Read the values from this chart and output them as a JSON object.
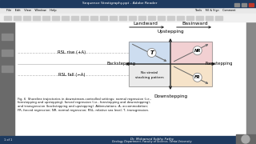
{
  "bg_color": "#b0b0b0",
  "doc_color": "#ffffff",
  "title_bar_color": "#1e3a5f",
  "menu_bar_color": "#e8e8e8",
  "toolbar_color": "#f0f0f0",
  "bottom_bar_color": "#1e3a5f",
  "left_panel_color": "#6a6a6a",
  "right_panel_color": "#888888",
  "diagram_title_landward": "Landward",
  "diagram_title_basinward": "Basinward",
  "upstepping": "Upstepping",
  "downstepping": "Downstepping",
  "backstepping": "Backstepping",
  "forestepping": "Forestepping",
  "no_strata": "No stratal\nstacking pattern",
  "rsl_rise": "RSL rise (+A)",
  "rsl_fall": "RSL fall (−A)",
  "label_T": "T",
  "label_NR": "NR",
  "label_FR": "FR",
  "quad_UL_color": "#c5d8ee",
  "quad_UR_color": "#f0c8ca",
  "quad_LL_color": "#e8e8e8",
  "quad_LR_color": "#f5dfc0",
  "fig_caption_line1": "Fig. 6  Shoreline trajectories in downstream-controlled settings: normal regression (i.e.,",
  "fig_caption_line2": "forestepping and upstepping), forced regression (i.e., forestepping and downstepping),",
  "fig_caption_line3": "and transgression (backstepping and upstepping). Abbreviations: A, accommodation;",
  "fig_caption_line4": "FR, forced regression; NR, normal regression; RSL, relative sea level; T, transgression.",
  "footer_name": "Dr. Mohamed Sobhy Fathy",
  "footer_dept": "Geology Department, Faculty of Science, Tanta University",
  "arrow_color": "#222222",
  "diag_line_color": "#666666",
  "title_text": "Sequence Stratigraphy.ppt - Adobe Reader",
  "menu_text": "File    Edit    View    Window    Help"
}
